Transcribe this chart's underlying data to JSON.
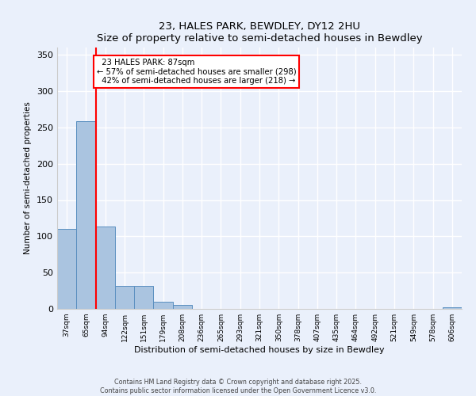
{
  "title": "23, HALES PARK, BEWDLEY, DY12 2HU",
  "subtitle": "Size of property relative to semi-detached houses in Bewdley",
  "xlabel": "Distribution of semi-detached houses by size in Bewdley",
  "ylabel": "Number of semi-detached properties",
  "categories": [
    "37sqm",
    "65sqm",
    "94sqm",
    "122sqm",
    "151sqm",
    "179sqm",
    "208sqm",
    "236sqm",
    "265sqm",
    "293sqm",
    "321sqm",
    "350sqm",
    "378sqm",
    "407sqm",
    "435sqm",
    "464sqm",
    "492sqm",
    "521sqm",
    "549sqm",
    "578sqm",
    "606sqm"
  ],
  "values": [
    110,
    258,
    113,
    32,
    32,
    10,
    5,
    0,
    0,
    0,
    0,
    0,
    0,
    0,
    0,
    0,
    0,
    0,
    0,
    0,
    2
  ],
  "bar_color": "#aac4e0",
  "bar_edge_color": "#5a8fc0",
  "red_line_x": 1.5,
  "property_label": "23 HALES PARK: 87sqm",
  "pct_smaller": 57,
  "n_smaller": 298,
  "pct_larger": 42,
  "n_larger": 218,
  "ylim": [
    0,
    360
  ],
  "yticks": [
    0,
    50,
    100,
    150,
    200,
    250,
    300,
    350
  ],
  "background_color": "#eaf0fb",
  "grid_color": "#ffffff",
  "fig_background_color": "#eaf0fb",
  "footer_line1": "Contains HM Land Registry data © Crown copyright and database right 2025.",
  "footer_line2": "Contains public sector information licensed under the Open Government Licence v3.0."
}
